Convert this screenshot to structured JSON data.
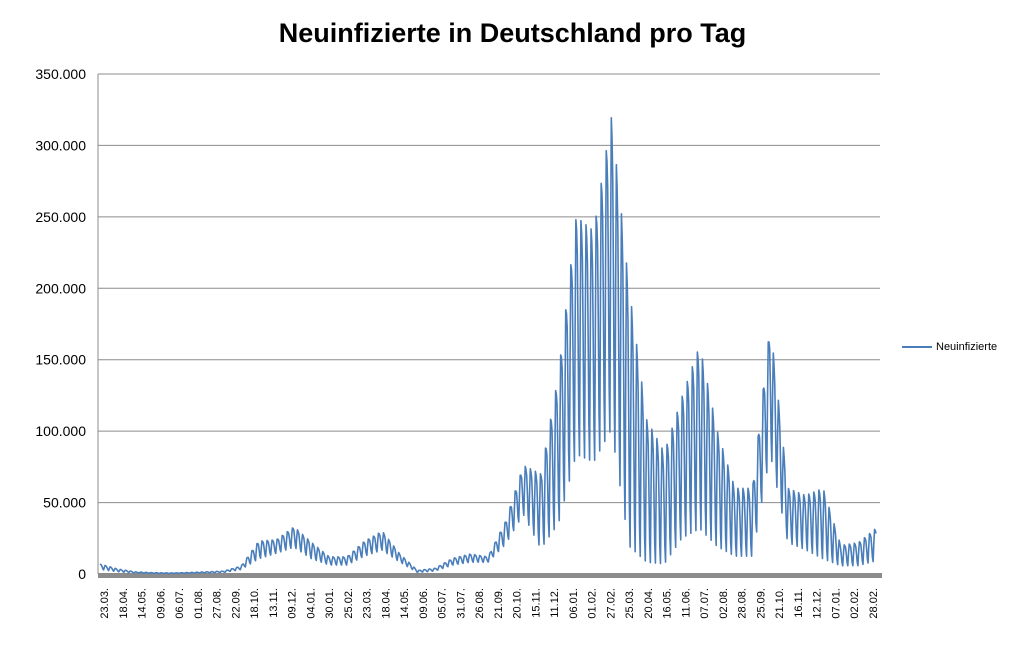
{
  "chart_data": {
    "type": "line",
    "title": "Neuinfizierte in Deutschland pro Tag",
    "xlabel": "",
    "ylabel": "",
    "ylim": [
      0,
      350000
    ],
    "y_ticks": [
      "0",
      "50.000",
      "100.000",
      "150.000",
      "200.000",
      "250.000",
      "300.000",
      "350.000"
    ],
    "y_tick_values": [
      0,
      50000,
      100000,
      150000,
      200000,
      250000,
      300000,
      350000
    ],
    "x_tick_labels": [
      "23.03.",
      "18.04.",
      "14.05.",
      "09.06.",
      "06.07.",
      "01.08.",
      "27.08.",
      "22.09.",
      "18.10.",
      "13.11.",
      "09.12.",
      "04.01.",
      "30.01.",
      "25.02.",
      "23.03.",
      "18.04.",
      "14.05.",
      "09.06.",
      "05.07.",
      "31.07.",
      "26.08.",
      "21.09.",
      "20.10.",
      "15.11.",
      "11.12.",
      "06.01.",
      "01.02.",
      "27.02.",
      "25.03.",
      "20.04.",
      "16.05.",
      "11.06.",
      "07.07.",
      "02.08.",
      "28.08.",
      "25.09.",
      "21.10.",
      "16.11.",
      "12.12.",
      "07.01.",
      "02.02.",
      "28.02."
    ],
    "grid": true,
    "legend_position": "right",
    "series": [
      {
        "name": "Neuinfizierte",
        "color": "#4a7ebb",
        "envelope_high": [
          7000,
          3500,
          1500,
          900,
          700,
          1000,
          1500,
          2000,
          5500,
          23000,
          24000,
          33000,
          22000,
          12000,
          12000,
          23000,
          30000,
          14000,
          2500,
          4000,
          11000,
          14000,
          12000,
          37000,
          76000,
          70000,
          140000,
          250000,
          240000,
          320000,
          200000,
          108000,
          85000,
          124000,
          160000,
          100000,
          60000,
          60000,
          175000,
          60000,
          55000,
          60000,
          20000,
          22000,
          32000
        ],
        "envelope_low": [
          3000,
          1500,
          600,
          400,
          300,
          500,
          700,
          1000,
          3000,
          10000,
          14000,
          18000,
          10000,
          6000,
          6000,
          12000,
          16000,
          8000,
          1000,
          2000,
          6000,
          8000,
          8000,
          20000,
          40000,
          15000,
          30000,
          75000,
          70000,
          90000,
          10000,
          3000,
          3000,
          20000,
          25000,
          15000,
          10000,
          10000,
          80000,
          20000,
          15000,
          8000,
          5000,
          5000,
          8000
        ]
      }
    ]
  }
}
